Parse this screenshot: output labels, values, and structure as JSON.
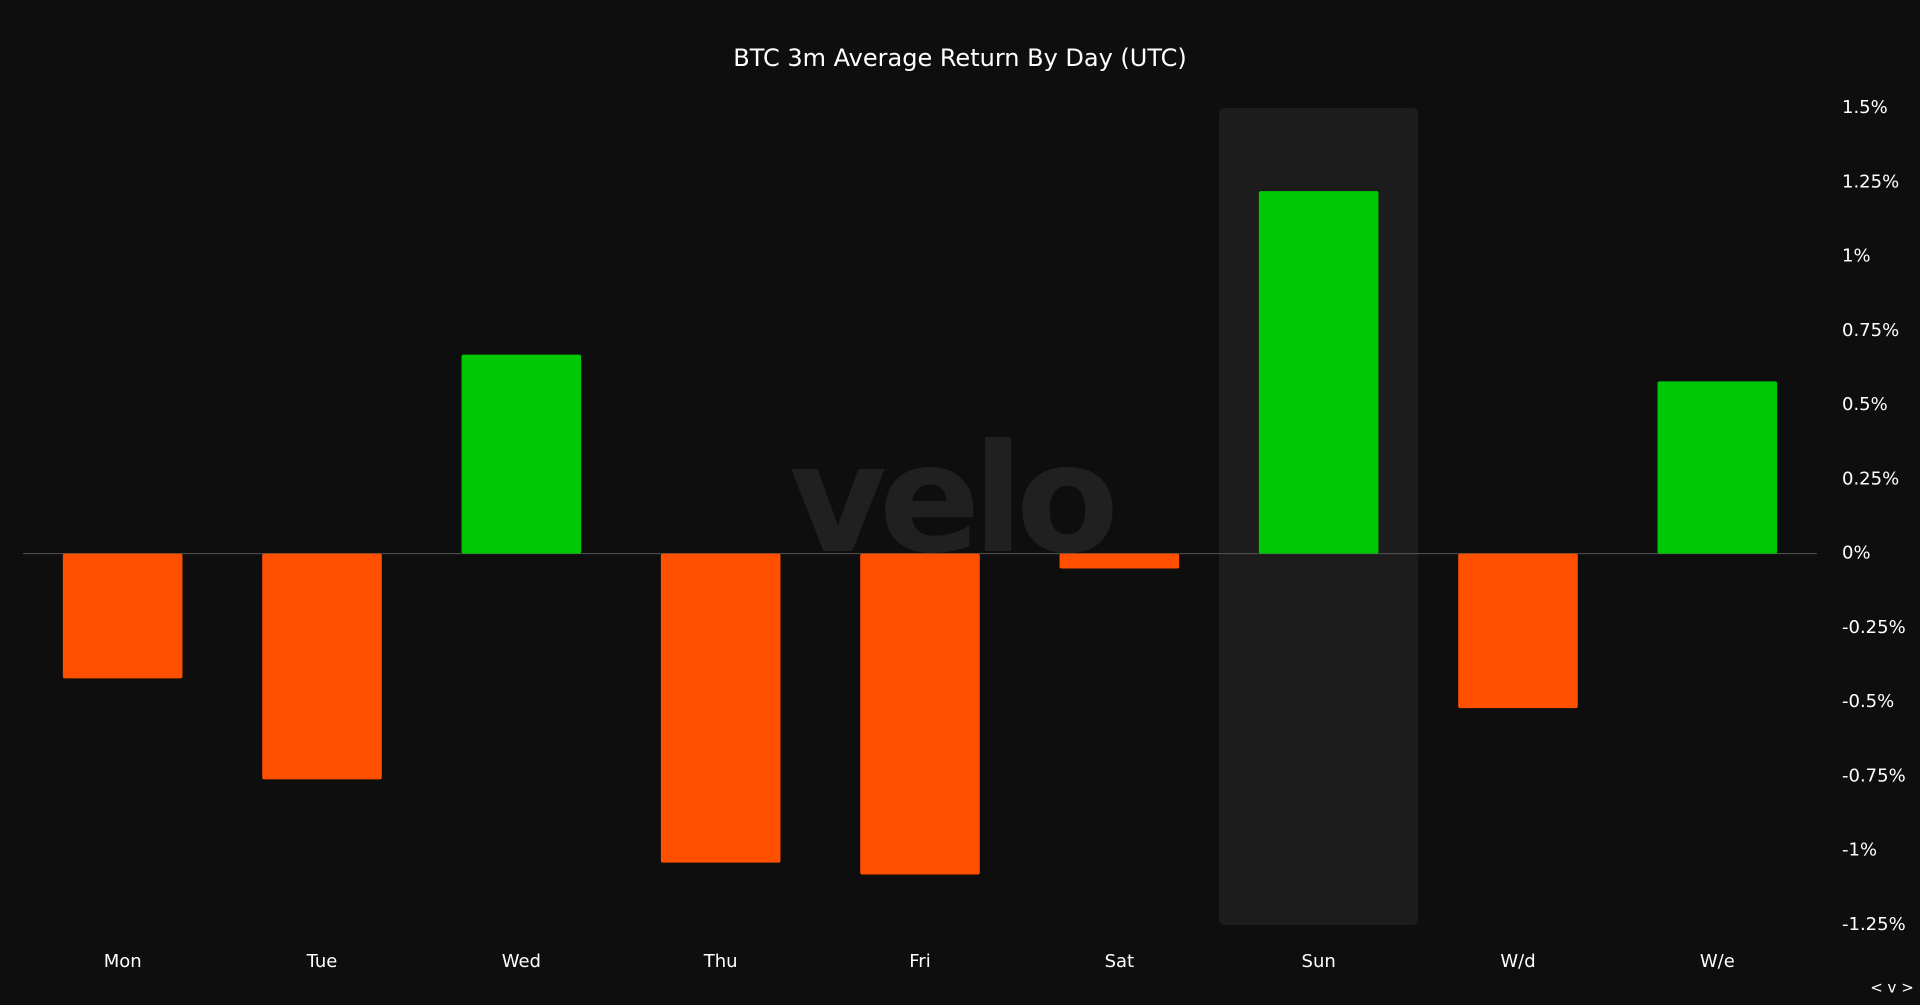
{
  "chart_data": {
    "type": "bar",
    "title": "BTC 3m Average Return By Day (UTC)",
    "watermark": "velo",
    "corner_control": "< v >",
    "categories": [
      "Mon",
      "Tue",
      "Wed",
      "Thu",
      "Fri",
      "Sat",
      "Sun",
      "W/d",
      "W/e"
    ],
    "values": [
      -0.42,
      -0.76,
      0.67,
      -1.04,
      -1.08,
      -0.05,
      1.22,
      -0.52,
      0.58
    ],
    "positive_color": "#00c805",
    "negative_color": "#ff5000",
    "highlight": "Sun",
    "highlight_color": "#1c1c1c",
    "ylim": [
      -1.25,
      1.5
    ],
    "yticks": [
      {
        "value": 1.5,
        "label": "1.5%"
      },
      {
        "value": 1.25,
        "label": "1.25%"
      },
      {
        "value": 1,
        "label": "1%"
      },
      {
        "value": 0.75,
        "label": "0.75%"
      },
      {
        "value": 0.5,
        "label": "0.5%"
      },
      {
        "value": 0.25,
        "label": "0.25%"
      },
      {
        "value": 0,
        "label": "0%"
      },
      {
        "value": -0.25,
        "label": "-0.25%"
      },
      {
        "value": -0.5,
        "label": "-0.5%"
      },
      {
        "value": -0.75,
        "label": "-0.75%"
      },
      {
        "value": -1,
        "label": "-1%"
      },
      {
        "value": -1.25,
        "label": "-1.25%"
      }
    ],
    "y_axis_side": "right",
    "zero_line": true
  }
}
